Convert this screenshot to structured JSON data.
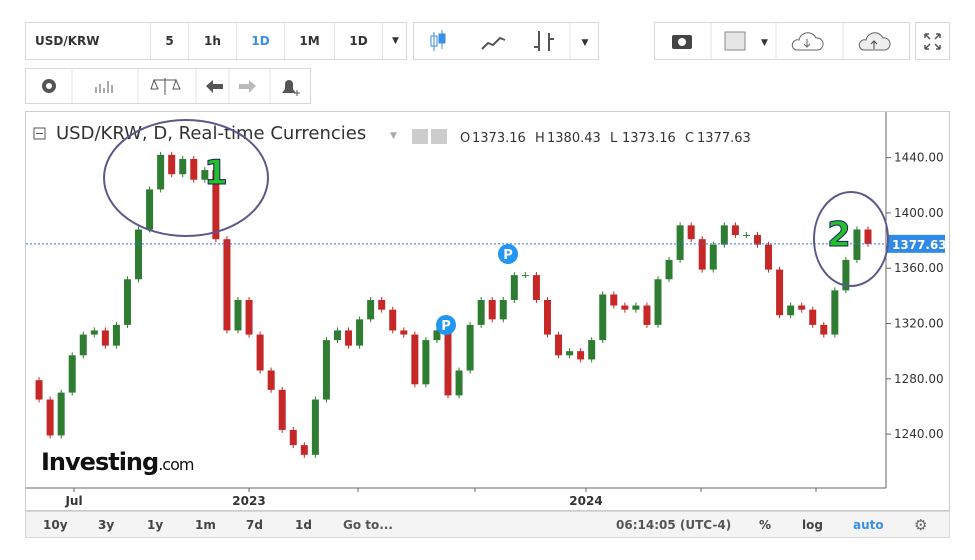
{
  "toolbar": {
    "symbol": "USD/KRW",
    "intervals": [
      "5",
      "1h",
      "1D",
      "1M",
      "1D"
    ]
  },
  "footer": {
    "ranges": [
      "10y",
      "3y",
      "1y",
      "1m",
      "7d",
      "1d"
    ],
    "goto": "Go to...",
    "time": "06:14:05 (UTC-4)",
    "percent": "%",
    "log": "log",
    "auto": "auto"
  },
  "chart_data": {
    "type": "candlestick",
    "title": "USD/KRW, D, Real-time Currencies",
    "ohlc_labels": [
      "O",
      "H",
      "L",
      "C"
    ],
    "ohlc": [
      1373.16,
      1380.43,
      1373.16,
      1377.63
    ],
    "closes": [
      1279,
      1265,
      1239,
      1270,
      1297,
      1312,
      1315,
      1304,
      1319,
      1352,
      1388,
      1417,
      1442,
      1428,
      1439,
      1424,
      1431,
      1381,
      1315,
      1337,
      1312,
      1286,
      1272,
      1243,
      1232,
      1225,
      1265,
      1308,
      1315,
      1304,
      1323,
      1337,
      1330,
      1315,
      1312,
      1276,
      1308,
      1315,
      1268,
      1286,
      1319,
      1337,
      1323,
      1337,
      1355,
      1355,
      1337,
      1312,
      1297,
      1300,
      1294,
      1308,
      1341,
      1333,
      1330,
      1333,
      1319,
      1352,
      1366,
      1391,
      1381,
      1359,
      1377,
      1391,
      1384,
      1384,
      1377,
      1359,
      1326,
      1333,
      1330,
      1319,
      1312,
      1344,
      1366,
      1388,
      1377.63
    ],
    "up_color": "#2e7d32",
    "down_color": "#c62828",
    "last_price": 1377.63,
    "ylim": [
      1201,
      1473
    ],
    "yticks": [
      {
        "value": 1240,
        "label": "1240.00"
      },
      {
        "value": 1280,
        "label": "1280.00"
      },
      {
        "value": 1320,
        "label": "1320.00"
      },
      {
        "value": 1360,
        "label": "1360.00"
      },
      {
        "value": 1400,
        "label": "1400.00"
      },
      {
        "value": 1440,
        "label": "1440.00"
      }
    ],
    "xtick_labels": [
      "Jul",
      "2023",
      "2024"
    ],
    "annotations": [
      "1",
      "2"
    ],
    "markers": [
      "P",
      "P"
    ],
    "logo": [
      "Investing",
      ".com"
    ]
  }
}
